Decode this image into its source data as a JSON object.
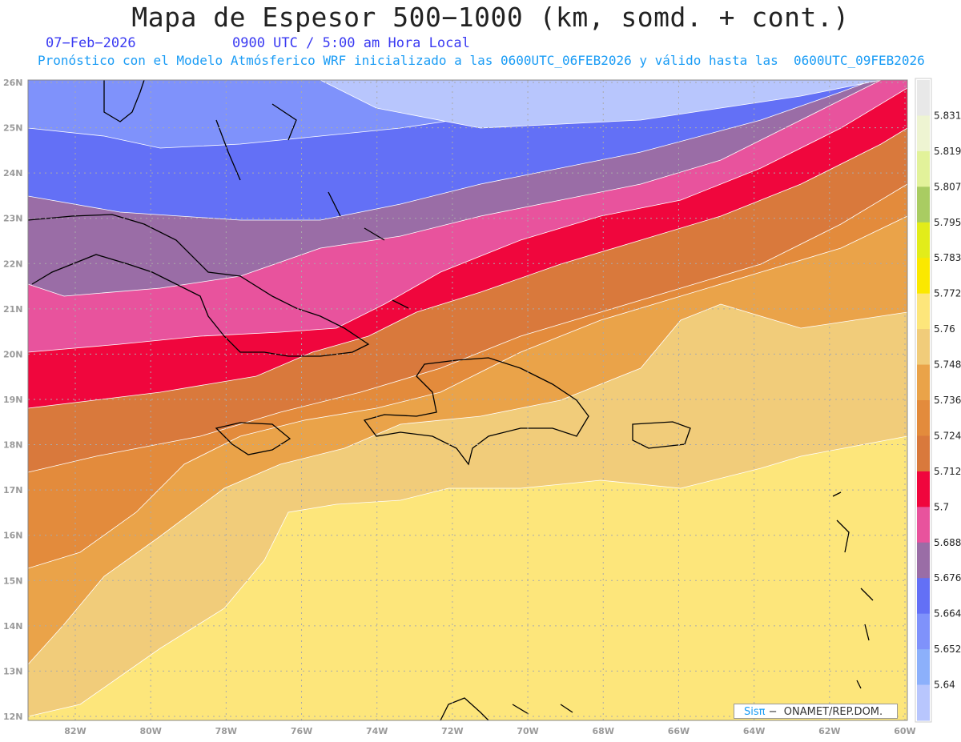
{
  "header": {
    "title": "Mapa de Espesor 500−1000 (km, somd. + cont.)",
    "date": "07−Feb−2026",
    "time": "0900 UTC / 5:00 am Hora Local",
    "subtitle": "Pronóstico con el Modelo Atmósferico WRF inicializado a las 0600UTC_06FEB2026 y válido hasta las  0600UTC_09FEB2026"
  },
  "axes": {
    "lat_labels": [
      "26N",
      "25N",
      "24N",
      "23N",
      "22N",
      "21N",
      "20N",
      "19N",
      "18N",
      "17N",
      "16N",
      "15N",
      "14N",
      "13N",
      "12N"
    ],
    "lon_labels": [
      "82W",
      "80W",
      "78W",
      "76W",
      "74W",
      "72W",
      "70W",
      "68W",
      "66W",
      "64W",
      "62W",
      "60W"
    ]
  },
  "colorbar": {
    "labels": [
      "5.831",
      "5.819",
      "5.807",
      "5.795",
      "5.783",
      "5.772",
      "5.76",
      "5.748",
      "5.736",
      "5.724",
      "5.712",
      "5.7",
      "5.688",
      "5.676",
      "5.664",
      "5.652",
      "5.64"
    ],
    "colors": [
      "#e8e8e8",
      "#eef4d2",
      "#e2f29a",
      "#a9cc62",
      "#e2ec1a",
      "#fbe800",
      "#fde67b",
      "#f1cc7a",
      "#eaa349",
      "#e38b3c",
      "#d9793c",
      "#f0063d",
      "#e8539d",
      "#9a6da6",
      "#6370f6",
      "#7f92fb",
      "#8cb0fb",
      "#b8c6fd"
    ]
  },
  "credit": {
    "brand": "Sisπ",
    "text": " −  ONAMET/REP.DOM."
  }
}
